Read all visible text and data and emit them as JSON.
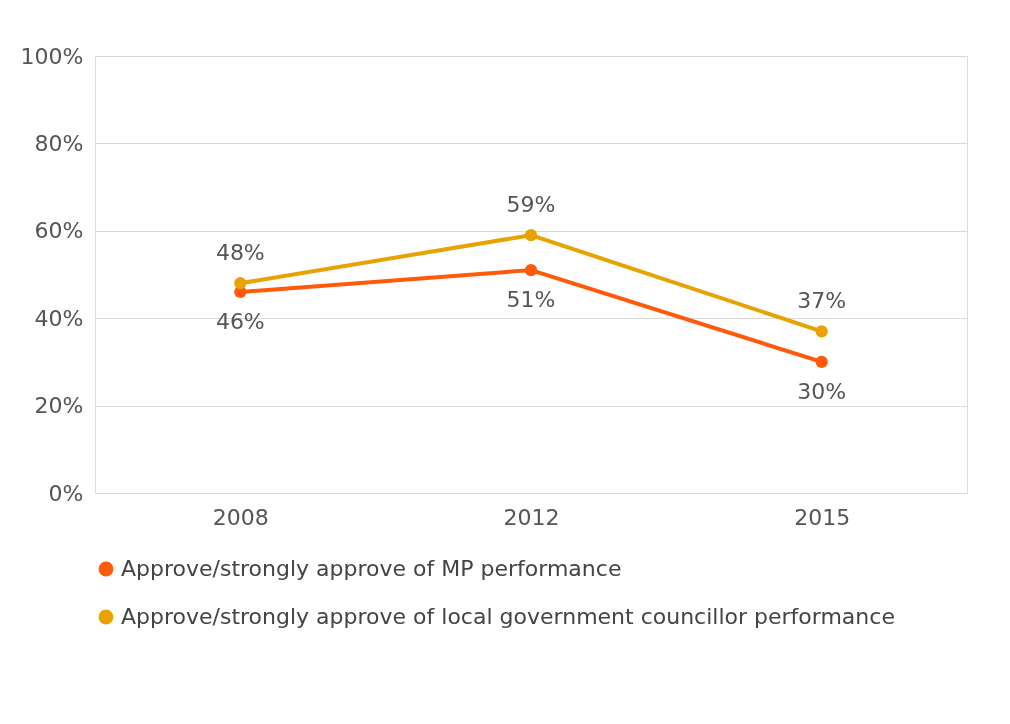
{
  "chart_data": {
    "type": "line",
    "categories": [
      "2008",
      "2012",
      "2015"
    ],
    "series": [
      {
        "name": "Approve/strongly approve of MP performance",
        "color": "#ff5a0a",
        "values": [
          46,
          51,
          30
        ],
        "value_labels": [
          "46%",
          "51%",
          "30%"
        ]
      },
      {
        "name": "Approve/strongly approve of local government councillor performance",
        "color": "#e8a202",
        "values": [
          48,
          59,
          37
        ],
        "value_labels": [
          "48%",
          "59%",
          "37%"
        ]
      }
    ],
    "ylim": [
      0,
      100
    ],
    "yticks": [
      {
        "value": 0,
        "label": "0%"
      },
      {
        "value": 20,
        "label": "20%"
      },
      {
        "value": 40,
        "label": "40%"
      },
      {
        "value": 60,
        "label": "60%"
      },
      {
        "value": 80,
        "label": "80%"
      },
      {
        "value": 100,
        "label": "100%"
      }
    ],
    "grid": "y",
    "legend": "bottom",
    "marker": "circle",
    "line_style": "solid"
  }
}
